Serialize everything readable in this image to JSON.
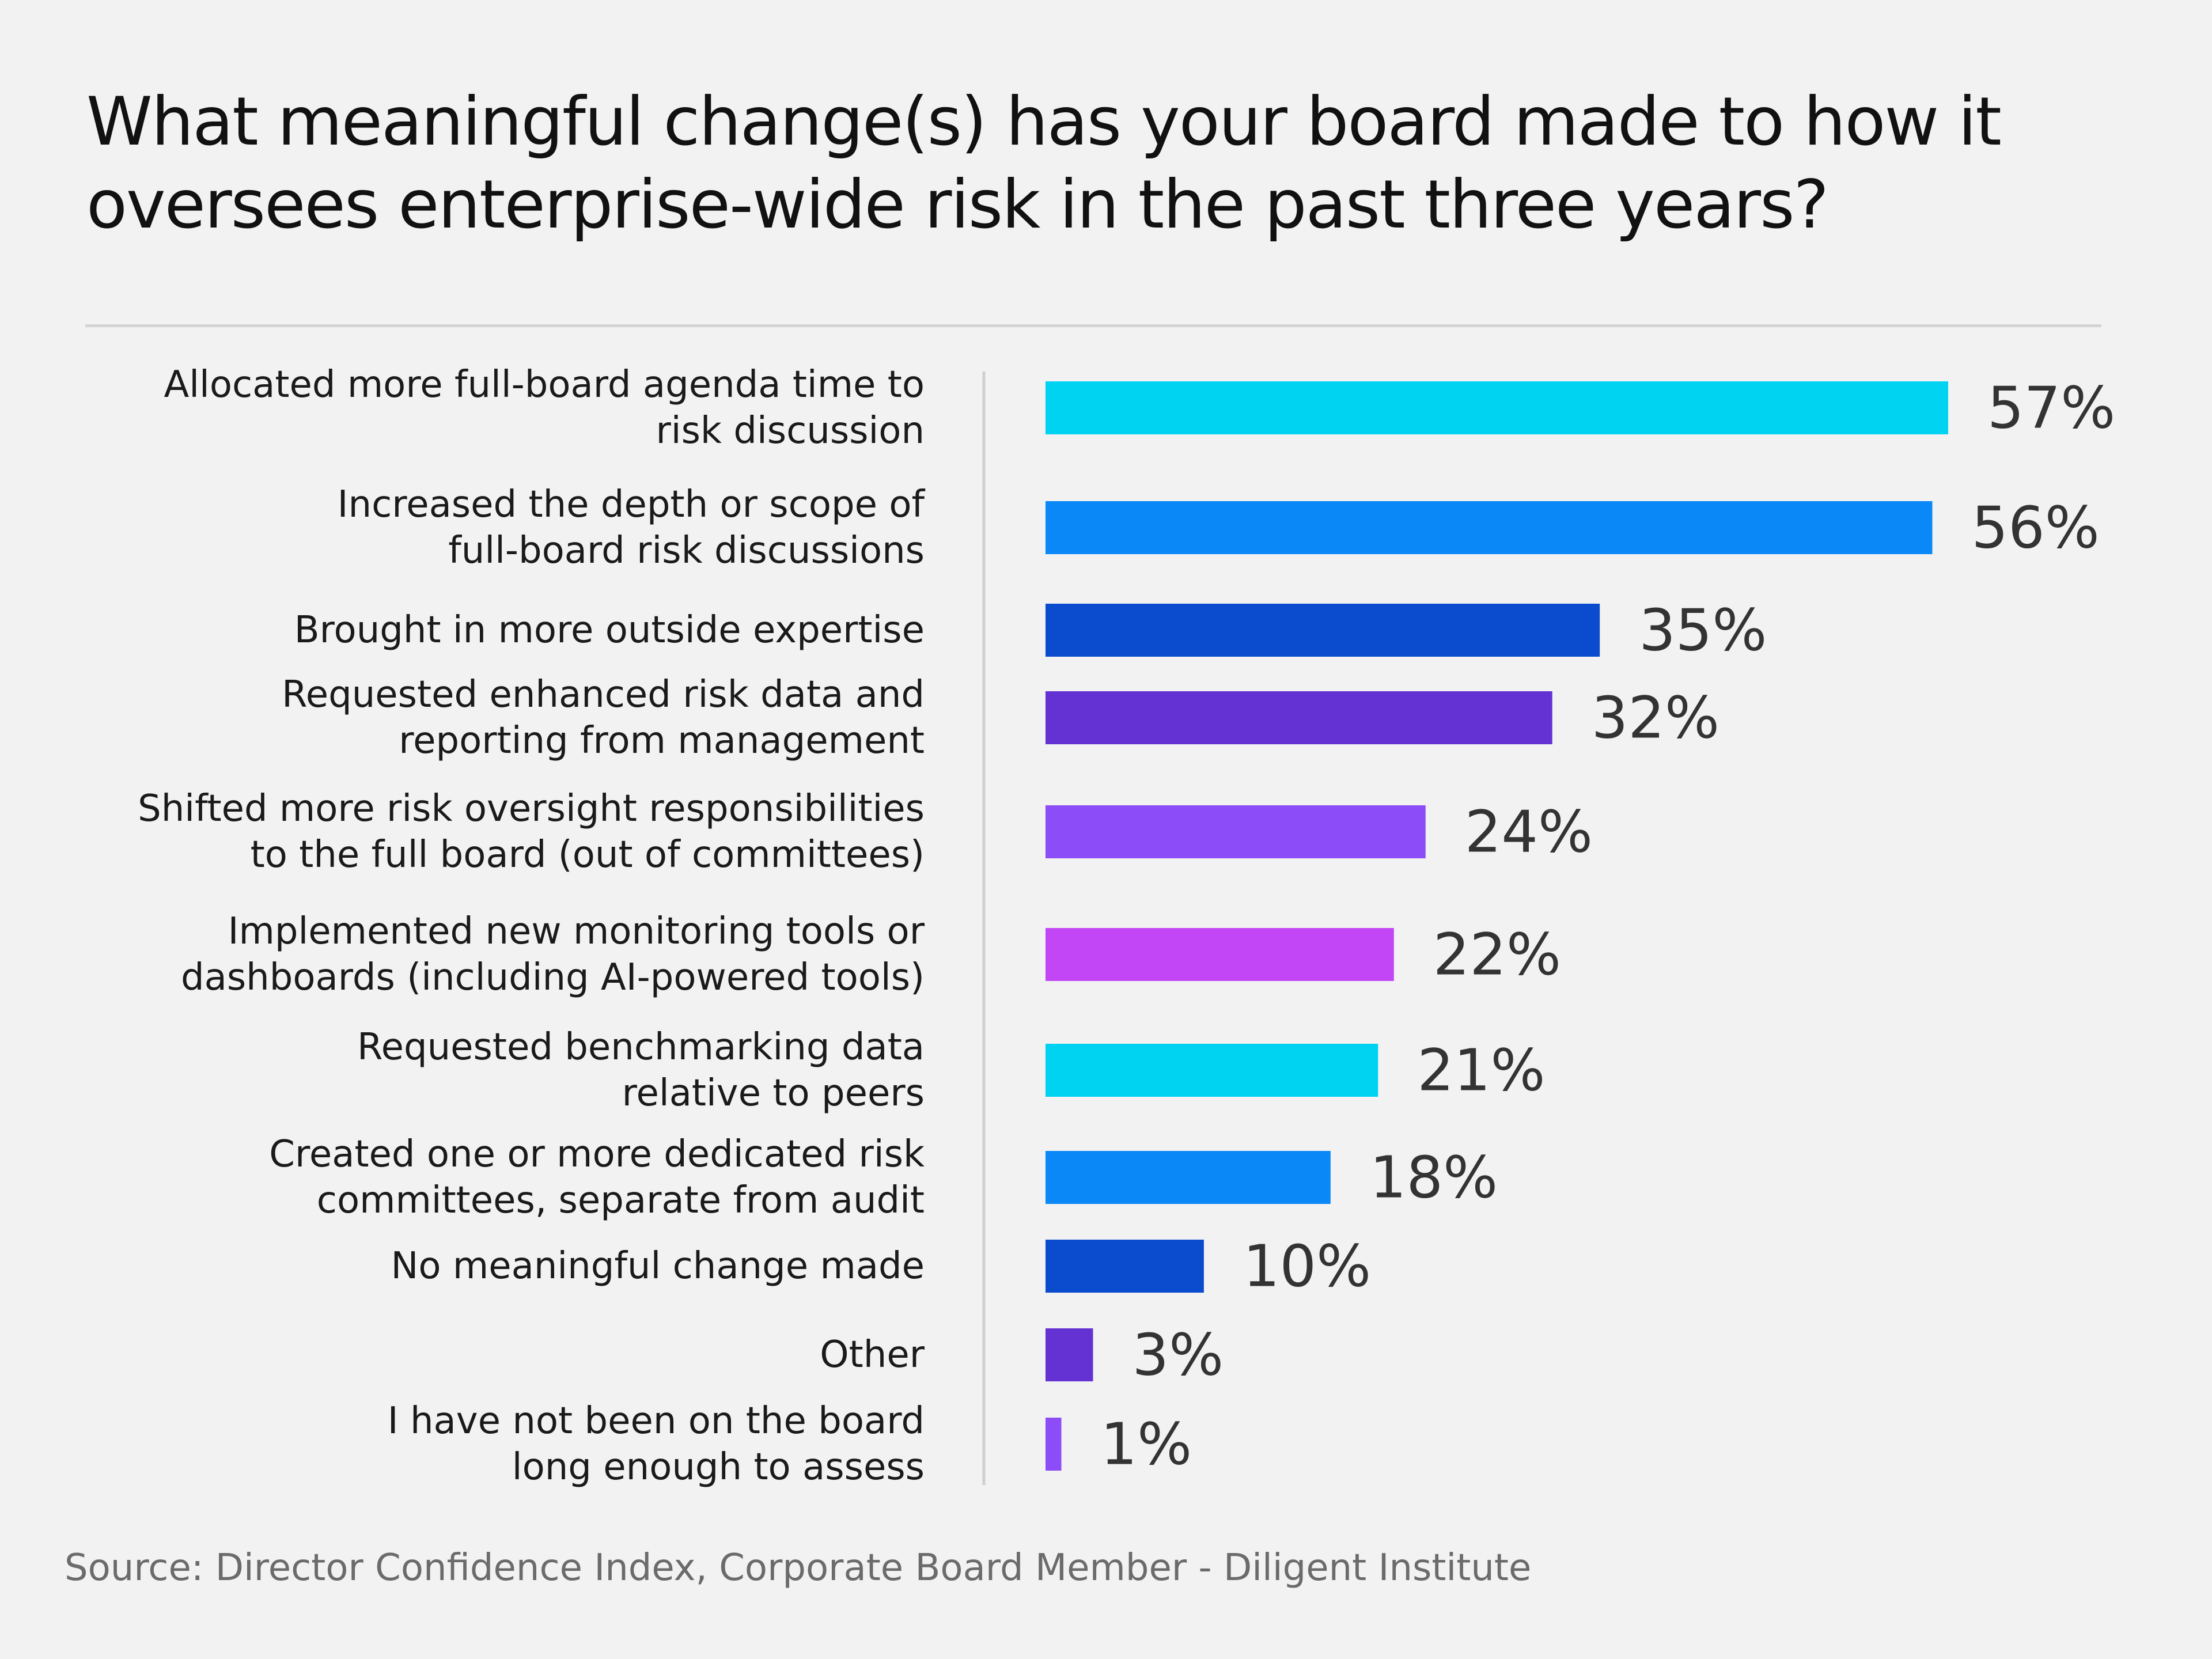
{
  "title": "What meaningful change(s) has your board made to how it oversees enterprise-wide risk in the past three years?",
  "source": "Source: Director Confidence Index, Corporate Board Member - Diligent Institute",
  "chart_data": {
    "type": "bar",
    "orientation": "horizontal",
    "title": "What meaningful change(s) has your board made to how it oversees enterprise-wide risk in the past three years?",
    "unit": "%",
    "xlim": [
      0,
      57
    ],
    "grid": false,
    "legend": "none",
    "categories": [
      [
        "Allocated more full-board agenda time to",
        "risk discussion"
      ],
      [
        "Increased the depth or scope of",
        "full-board risk discussions"
      ],
      [
        "Brought in more outside expertise"
      ],
      [
        "Requested enhanced risk data and",
        "reporting from management"
      ],
      [
        "Shifted more risk oversight responsibilities",
        "to the full board (out of committees)"
      ],
      [
        "Implemented new monitoring tools or",
        "dashboards (including AI-powered tools)"
      ],
      [
        "Requested benchmarking data",
        "relative to peers"
      ],
      [
        "Created one or more dedicated risk",
        "committees, separate from audit"
      ],
      [
        "No meaningful change made"
      ],
      [
        "Other"
      ],
      [
        "I have not been on the board",
        "long enough to assess"
      ]
    ],
    "values": [
      57,
      56,
      35,
      32,
      24,
      22,
      21,
      18,
      10,
      3,
      1
    ],
    "value_labels": [
      "57%",
      "56%",
      "35%",
      "32%",
      "24%",
      "22%",
      "21%",
      "18%",
      "10%",
      "3%",
      "1%"
    ],
    "colors": [
      "#00d3f2",
      "#0a88f7",
      "#0b4bce",
      "#6431d2",
      "#8c4cf7",
      "#c246f6",
      "#00d3f2",
      "#0a88f7",
      "#0b4bce",
      "#6431d2",
      "#8c4cf7"
    ]
  }
}
